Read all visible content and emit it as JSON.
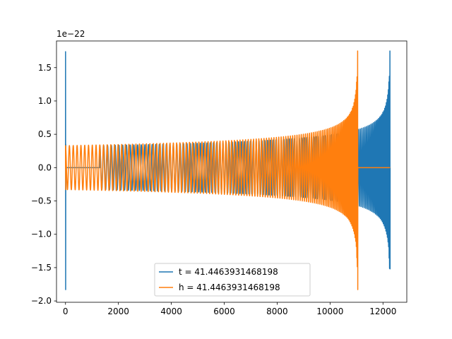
{
  "chart_data": {
    "type": "line",
    "offset_text": "1e−22",
    "scale_exponent": -22,
    "xlim": [
      -340,
      12900
    ],
    "ylim": [
      -2.02,
      1.9
    ],
    "x_ticks": [
      0,
      2000,
      4000,
      6000,
      8000,
      10000,
      12000
    ],
    "x_tick_labels": [
      "0",
      "2000",
      "4000",
      "6000",
      "8000",
      "10000",
      "12000"
    ],
    "y_ticks": [
      -2.0,
      -1.5,
      -1.0,
      -0.5,
      0.0,
      0.5,
      1.0,
      1.5
    ],
    "y_tick_labels": [
      "−2.0",
      "−1.5",
      "−1.0",
      "−0.5",
      "0.0",
      "0.5",
      "1.0",
      "1.5"
    ],
    "grid": false,
    "legend_position": "lower-center",
    "series": [
      {
        "name": "t = 41.4463931468198",
        "color": "#1f77b4",
        "x_range": [
          0,
          12270
        ],
        "cycles": 120,
        "signal_start": 1300,
        "merger_x": 12270,
        "initial_spike": {
          "max": 1.74,
          "min": -1.83
        },
        "amplitude_start": 0.33,
        "amplitude_end": 0.55,
        "final_spike": {
          "max": 1.75,
          "min": -1.52
        }
      },
      {
        "name": "h = 41.4463931468198",
        "color": "#ff7f0e",
        "x_range": [
          0,
          12270
        ],
        "cycles": 120,
        "signal_start": 0,
        "merger_x": 11050,
        "initial_spike": {
          "max": 0.33,
          "min": -0.33
        },
        "amplitude_start": 0.33,
        "amplitude_end": 0.55,
        "final_spike": {
          "max": 1.75,
          "min": -1.83
        },
        "flat_after": [
          11050,
          12270
        ]
      }
    ]
  }
}
